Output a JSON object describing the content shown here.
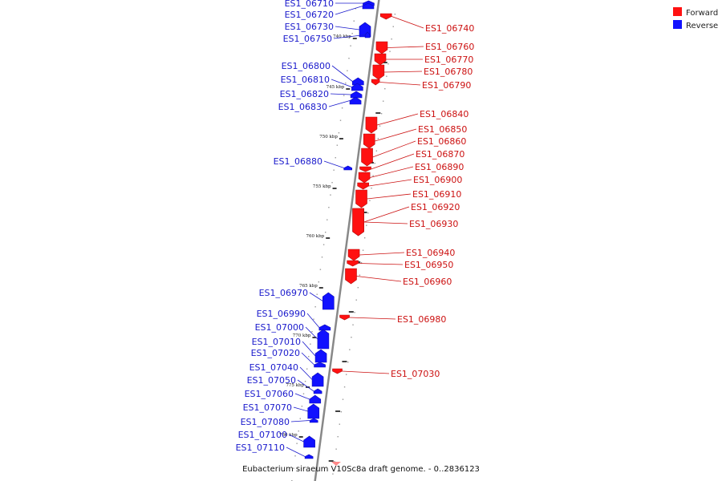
{
  "caption": "Eubacterium siraeum V10Sc8a draft genome. - 0..2836123",
  "legend": [
    {
      "label": "Forward",
      "color": "#ff1111"
    },
    {
      "label": "Reverse",
      "color": "#1111ff"
    }
  ],
  "colors": {
    "forward": "#ff1111",
    "reverse": "#1111ff",
    "forward_label": "#cc1111",
    "reverse_label": "#1a1acc",
    "backbone": "#888888"
  },
  "ticks": [
    {
      "label": "740 kbp"
    },
    {
      "label": "745 kbp"
    },
    {
      "label": "750 kbp"
    },
    {
      "label": "755 kbp"
    },
    {
      "label": "760 kbp"
    },
    {
      "label": "765 kbp"
    },
    {
      "label": "770 kbp"
    },
    {
      "label": "775 kbp"
    },
    {
      "label": "780 kbp"
    }
  ],
  "genes_reverse": [
    "ES1_06710",
    "ES1_06720",
    "ES1_06730",
    "ES1_06750",
    "ES1_06800",
    "ES1_06810",
    "ES1_06820",
    "ES1_06830",
    "ES1_06880",
    "ES1_06970",
    "ES1_06990",
    "ES1_07000",
    "ES1_07010",
    "ES1_07020",
    "ES1_07040",
    "ES1_07050",
    "ES1_07060",
    "ES1_07070",
    "ES1_07080",
    "ES1_07100",
    "ES1_07110"
  ],
  "genes_forward": [
    "ES1_06740",
    "ES1_06760",
    "ES1_06770",
    "ES1_06780",
    "ES1_06790",
    "ES1_06840",
    "ES1_06850",
    "ES1_06860",
    "ES1_06870",
    "ES1_06890",
    "ES1_06900",
    "ES1_06910",
    "ES1_06920",
    "ES1_06930",
    "ES1_06940",
    "ES1_06950",
    "ES1_06960",
    "ES1_06980",
    "ES1_07030"
  ]
}
